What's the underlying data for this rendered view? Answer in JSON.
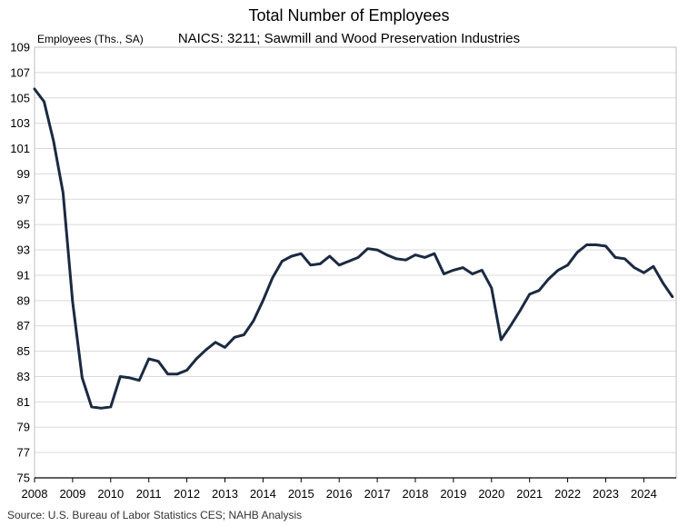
{
  "chart_data": {
    "type": "line",
    "title": "Total Number of Employees",
    "subtitle": "NAICS: 3211; Sawmill and Wood Preservation Industries",
    "ylabel": "Employees (Ths., SA)",
    "xlabel": "",
    "source": "Source: U.S. Bureau of Labor Statistics CES; NAHB Analysis",
    "xlim": [
      2008.0,
      2024.85
    ],
    "ylim": [
      75,
      109
    ],
    "y_ticks": [
      75,
      77,
      79,
      81,
      83,
      85,
      87,
      89,
      91,
      93,
      95,
      97,
      99,
      101,
      103,
      105,
      107,
      109
    ],
    "x_ticks": [
      "2008",
      "2009",
      "2010",
      "2011",
      "2012",
      "2013",
      "2014",
      "2015",
      "2016",
      "2017",
      "2018",
      "2019",
      "2020",
      "2021",
      "2022",
      "2023",
      "2024"
    ],
    "grid": true,
    "line_color": "#1b2a41",
    "series": [
      {
        "x": [
          2008.0,
          2008.25,
          2008.5,
          2008.75,
          2009.0,
          2009.25,
          2009.5,
          2009.75,
          2010.0,
          2010.25,
          2010.5,
          2010.75,
          2011.0,
          2011.25,
          2011.5,
          2011.75,
          2012.0,
          2012.25,
          2012.5,
          2012.75,
          2013.0,
          2013.25,
          2013.5,
          2013.75,
          2014.0,
          2014.25,
          2014.5,
          2014.75,
          2015.0,
          2015.25,
          2015.5,
          2015.75,
          2016.0,
          2016.25,
          2016.5,
          2016.75,
          2017.0,
          2017.25,
          2017.5,
          2017.75,
          2018.0,
          2018.25,
          2018.5,
          2018.75,
          2019.0,
          2019.25,
          2019.5,
          2019.75,
          2020.0,
          2020.25,
          2020.5,
          2020.75,
          2021.0,
          2021.25,
          2021.5,
          2021.75,
          2022.0,
          2022.25,
          2022.5,
          2022.75,
          2023.0,
          2023.25,
          2023.5,
          2023.75,
          2024.0,
          2024.25,
          2024.5,
          2024.75
        ],
        "y": [
          105.7,
          104.7,
          101.6,
          97.5,
          88.9,
          82.9,
          80.6,
          80.5,
          80.6,
          83.0,
          82.9,
          82.7,
          84.4,
          84.2,
          83.2,
          83.2,
          83.5,
          84.4,
          85.1,
          85.7,
          85.3,
          86.1,
          86.3,
          87.4,
          89.0,
          90.8,
          92.1,
          92.5,
          92.7,
          91.8,
          91.9,
          92.5,
          91.8,
          92.1,
          92.4,
          93.1,
          93.0,
          92.6,
          92.3,
          92.2,
          92.6,
          92.4,
          92.7,
          91.1,
          91.4,
          91.6,
          91.1,
          91.4,
          90.0,
          85.9,
          87.0,
          88.2,
          89.5,
          89.8,
          90.7,
          91.4,
          91.8,
          92.8,
          93.4,
          93.4,
          93.3,
          92.4,
          92.3,
          91.6,
          91.2,
          91.7,
          90.4,
          89.3
        ]
      }
    ]
  }
}
